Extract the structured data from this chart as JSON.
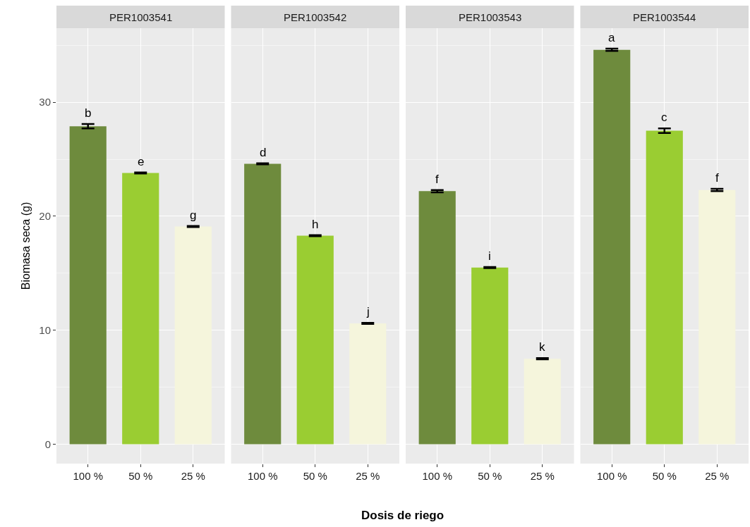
{
  "chart_data": [
    {
      "type": "bar",
      "title": "PER1003541",
      "ylabel": "Biomasa seca (g)",
      "categories": [
        "100 %",
        "50 %",
        "25 %"
      ],
      "colors": [
        "#6e8b3d",
        "#9acd32",
        "#f5f5dc"
      ],
      "values": [
        27.9,
        23.8,
        19.1
      ],
      "errors": [
        0.2,
        0.05,
        0.05
      ],
      "annotations": [
        {
          "text": "b",
          "x": "100 %",
          "y": 27.9
        },
        {
          "text": "e",
          "x": "50 %",
          "y": 23.8
        },
        {
          "text": "g",
          "x": "25 %",
          "y": 19.1
        }
      ],
      "ylim": [
        -1.7,
        36.5
      ],
      "yticks": [
        0,
        10,
        20,
        30
      ],
      "grid": true
    },
    {
      "type": "bar",
      "title": "PER1003542",
      "xlabel": "Dosis de riego",
      "categories": [
        "100 %",
        "50 %",
        "25 %"
      ],
      "colors": [
        "#6e8b3d",
        "#9acd32",
        "#f5f5dc"
      ],
      "values": [
        24.6,
        18.3,
        10.6
      ],
      "errors": [
        0.05,
        0.05,
        0.05
      ],
      "annotations": [
        {
          "text": "d",
          "x": "100 %",
          "y": 24.6
        },
        {
          "text": "h",
          "x": "50 %",
          "y": 18.3
        },
        {
          "text": "j",
          "x": "25 %",
          "y": 10.6
        }
      ],
      "ylim": [
        -1.7,
        36.5
      ],
      "yticks": [
        0,
        10,
        20,
        30
      ],
      "tick_labels": "x",
      "grid": true
    },
    {
      "type": "bar",
      "title": "PER1003543",
      "categories": [
        "100 %",
        "50 %",
        "25 %"
      ],
      "colors": [
        "#6e8b3d",
        "#9acd32",
        "#f5f5dc"
      ],
      "values": [
        22.2,
        15.5,
        7.5
      ],
      "errors": [
        0.1,
        0.05,
        0.05
      ],
      "annotations": [
        {
          "text": "f",
          "x": "100 %",
          "y": 22.2
        },
        {
          "text": "i",
          "x": "50 %",
          "y": 15.5
        },
        {
          "text": "k",
          "x": "25 %",
          "y": 7.5
        }
      ],
      "ylim": [
        -1.7,
        36.5
      ],
      "yticks": [
        0,
        10,
        20,
        30
      ],
      "tick_labels": "x",
      "grid": true
    },
    {
      "type": "bar",
      "title": "PER1003544",
      "categories": [
        "100 %",
        "50 %",
        "25 %"
      ],
      "colors": [
        "#6e8b3d",
        "#9acd32",
        "#f5f5dc"
      ],
      "values": [
        34.6,
        27.5,
        22.3
      ],
      "errors": [
        0.1,
        0.2,
        0.1
      ],
      "annotations": [
        {
          "text": "a",
          "x": "100 %",
          "y": 34.6
        },
        {
          "text": "c",
          "x": "50 %",
          "y": 27.5
        },
        {
          "text": "f",
          "x": "25 %",
          "y": 22.3
        }
      ],
      "ylim": [
        -1.7,
        36.5
      ],
      "yticks": [
        0,
        10,
        20,
        30
      ],
      "tick_labels": "x",
      "grid": true
    }
  ]
}
